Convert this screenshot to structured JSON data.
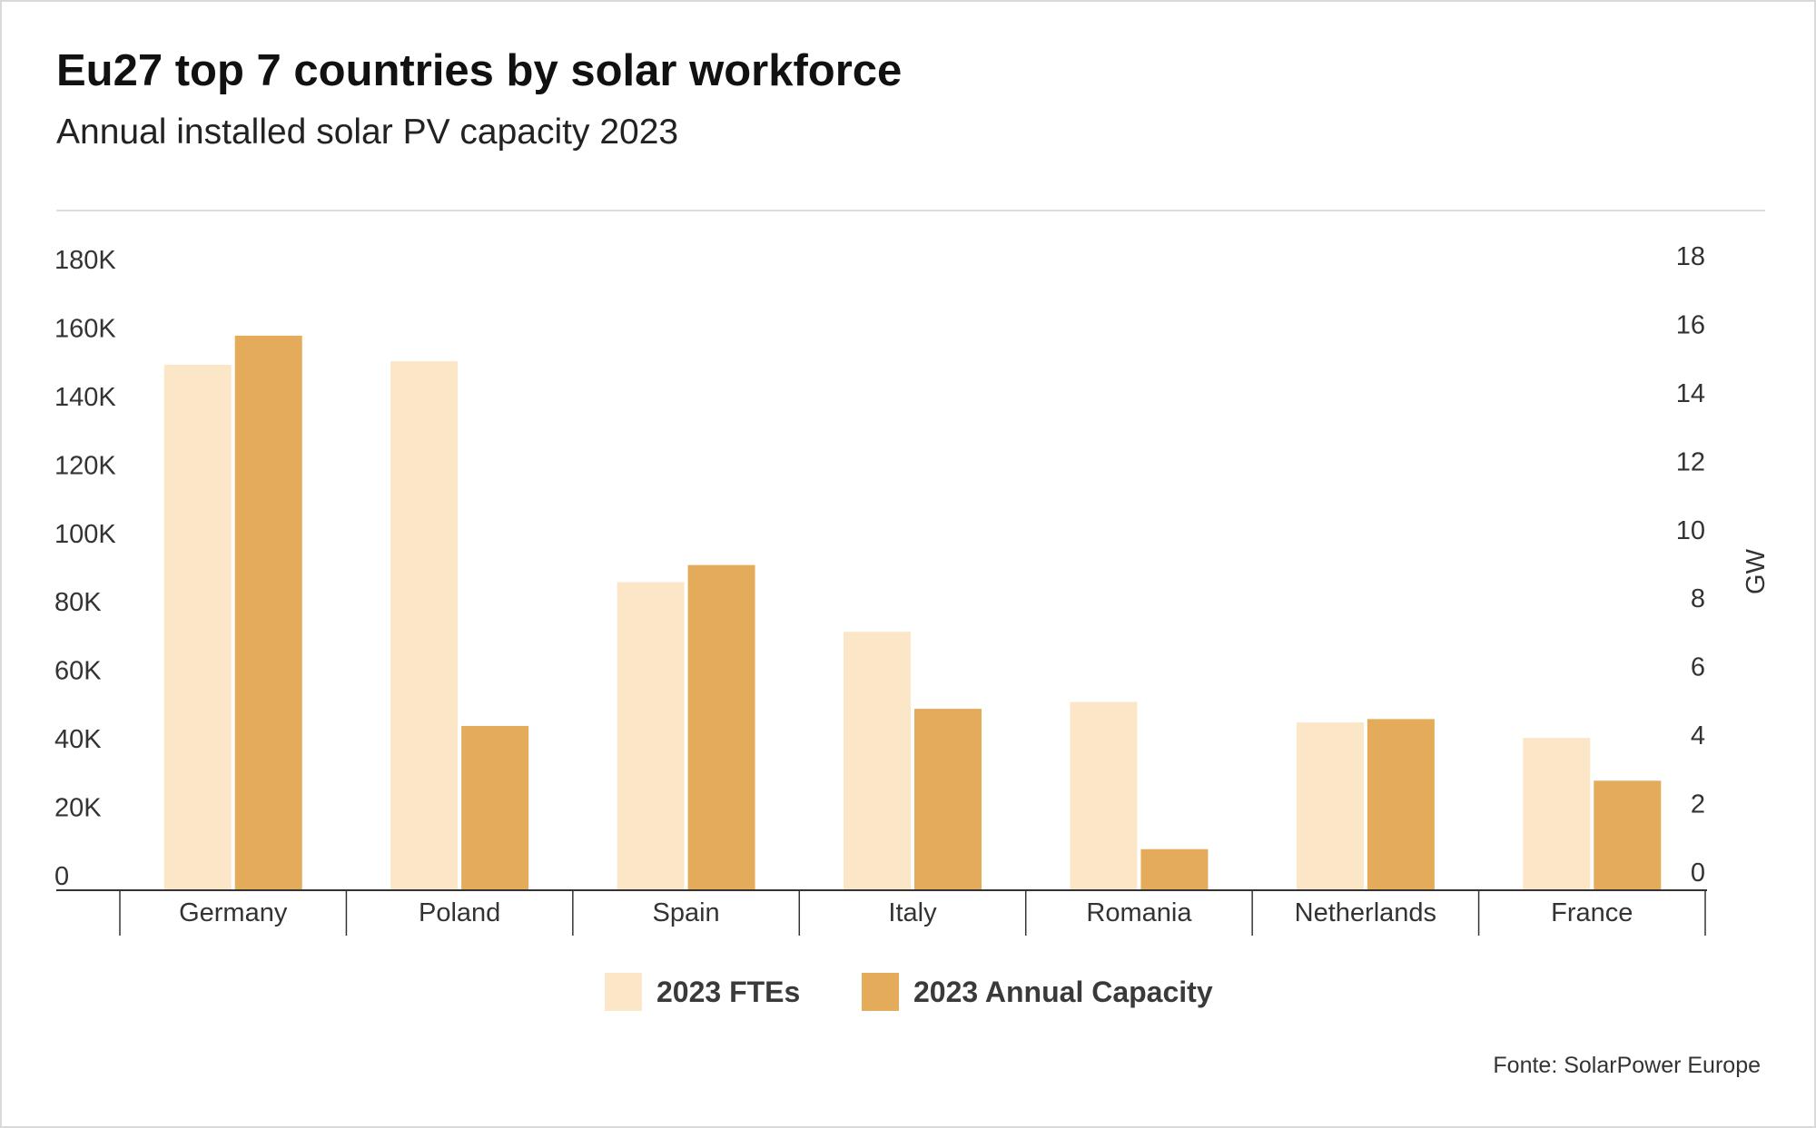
{
  "header": {
    "title": "Eu27 top 7 countries by solar workforce",
    "subtitle": "Annual installed solar PV capacity 2023"
  },
  "footer": {
    "source": "Fonte: SolarPower Europe"
  },
  "colors": {
    "ftes": "#fce6c8",
    "capacity": "#e4ab5a",
    "axis": "#333333",
    "divider": "#dedede"
  },
  "chart_data": {
    "type": "bar",
    "title": "Eu27 top 7 countries by solar workforce",
    "subtitle": "Annual installed solar PV capacity 2023",
    "categories": [
      "Germany",
      "Poland",
      "Spain",
      "Italy",
      "Romania",
      "Netherlands",
      "France"
    ],
    "series": [
      {
        "name": "2023 FTEs",
        "axis": "left",
        "values": [
          153500,
          154500,
          90000,
          75500,
          55000,
          49000,
          44500
        ]
      },
      {
        "name": "2023 Annual Capacity",
        "axis": "right",
        "values": [
          16.2,
          4.8,
          9.5,
          5.3,
          1.2,
          5.0,
          3.2
        ]
      }
    ],
    "left_axis": {
      "label": "",
      "ylim": [
        0,
        180000
      ],
      "ticks": [
        0,
        20000,
        40000,
        60000,
        80000,
        100000,
        120000,
        140000,
        160000,
        180000
      ],
      "tick_labels": [
        "0",
        "20K",
        "40K",
        "60K",
        "80K",
        "100K",
        "120K",
        "140K",
        "160K",
        "180K"
      ]
    },
    "right_axis": {
      "label": "GW",
      "ylim": [
        0,
        18
      ],
      "ticks": [
        0,
        2,
        4,
        6,
        8,
        10,
        12,
        14,
        16,
        18
      ],
      "tick_labels": [
        "0",
        "2",
        "4",
        "6",
        "8",
        "10",
        "12",
        "14",
        "16",
        "18"
      ]
    },
    "grid": false,
    "legend": "bottom-center"
  }
}
